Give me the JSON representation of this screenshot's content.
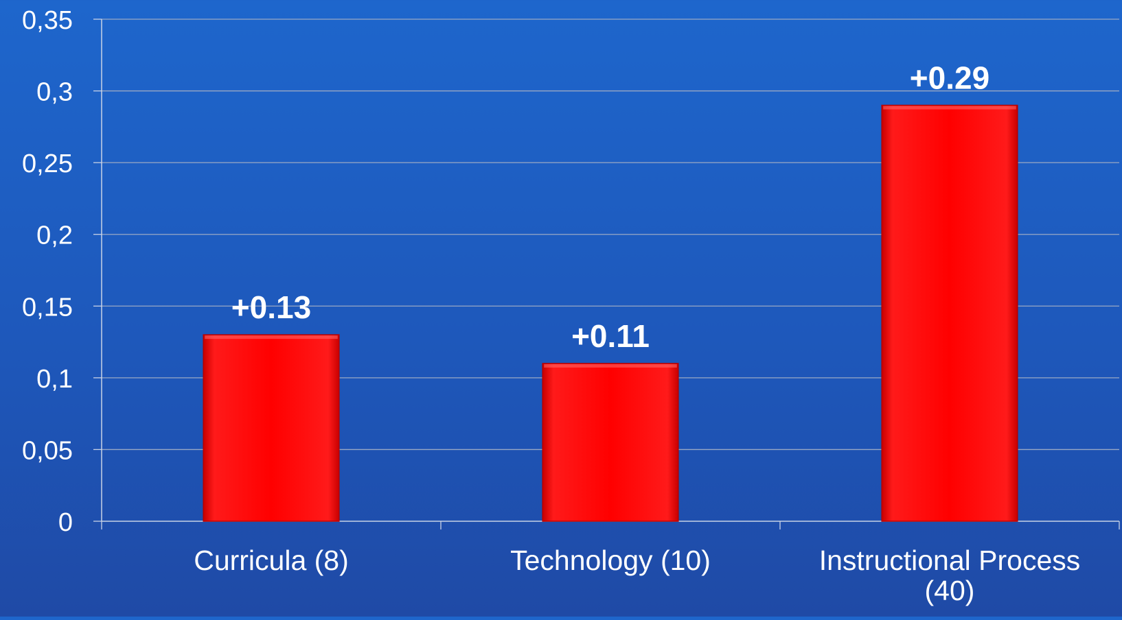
{
  "chart_data": {
    "type": "bar",
    "categories": [
      "Curricula (8)",
      "Technology (10)",
      "Instructional Process (40)"
    ],
    "category_lines": [
      [
        "Curricula (8)"
      ],
      [
        "Technology (10)"
      ],
      [
        "Instructional Process",
        "(40)"
      ]
    ],
    "values": [
      0.13,
      0.11,
      0.29
    ],
    "data_labels": [
      "+0.13",
      "+0.11",
      "+0.29"
    ],
    "y_ticks": [
      0,
      0.05,
      0.1,
      0.15,
      0.2,
      0.25,
      0.3,
      0.35
    ],
    "y_tick_labels": [
      "0",
      "0,05",
      "0,1",
      "0,15",
      "0,2",
      "0,25",
      "0,3",
      "0,35"
    ],
    "ylim": [
      0,
      0.35
    ],
    "grid": true,
    "legend": "none",
    "title": "",
    "xlabel": "",
    "ylabel": "",
    "colors": {
      "bar": "#ff0000",
      "bar_edge": "#b80000",
      "text": "#ffffff",
      "grid": "#9aa9c4",
      "axis": "#c9d3e6"
    }
  }
}
